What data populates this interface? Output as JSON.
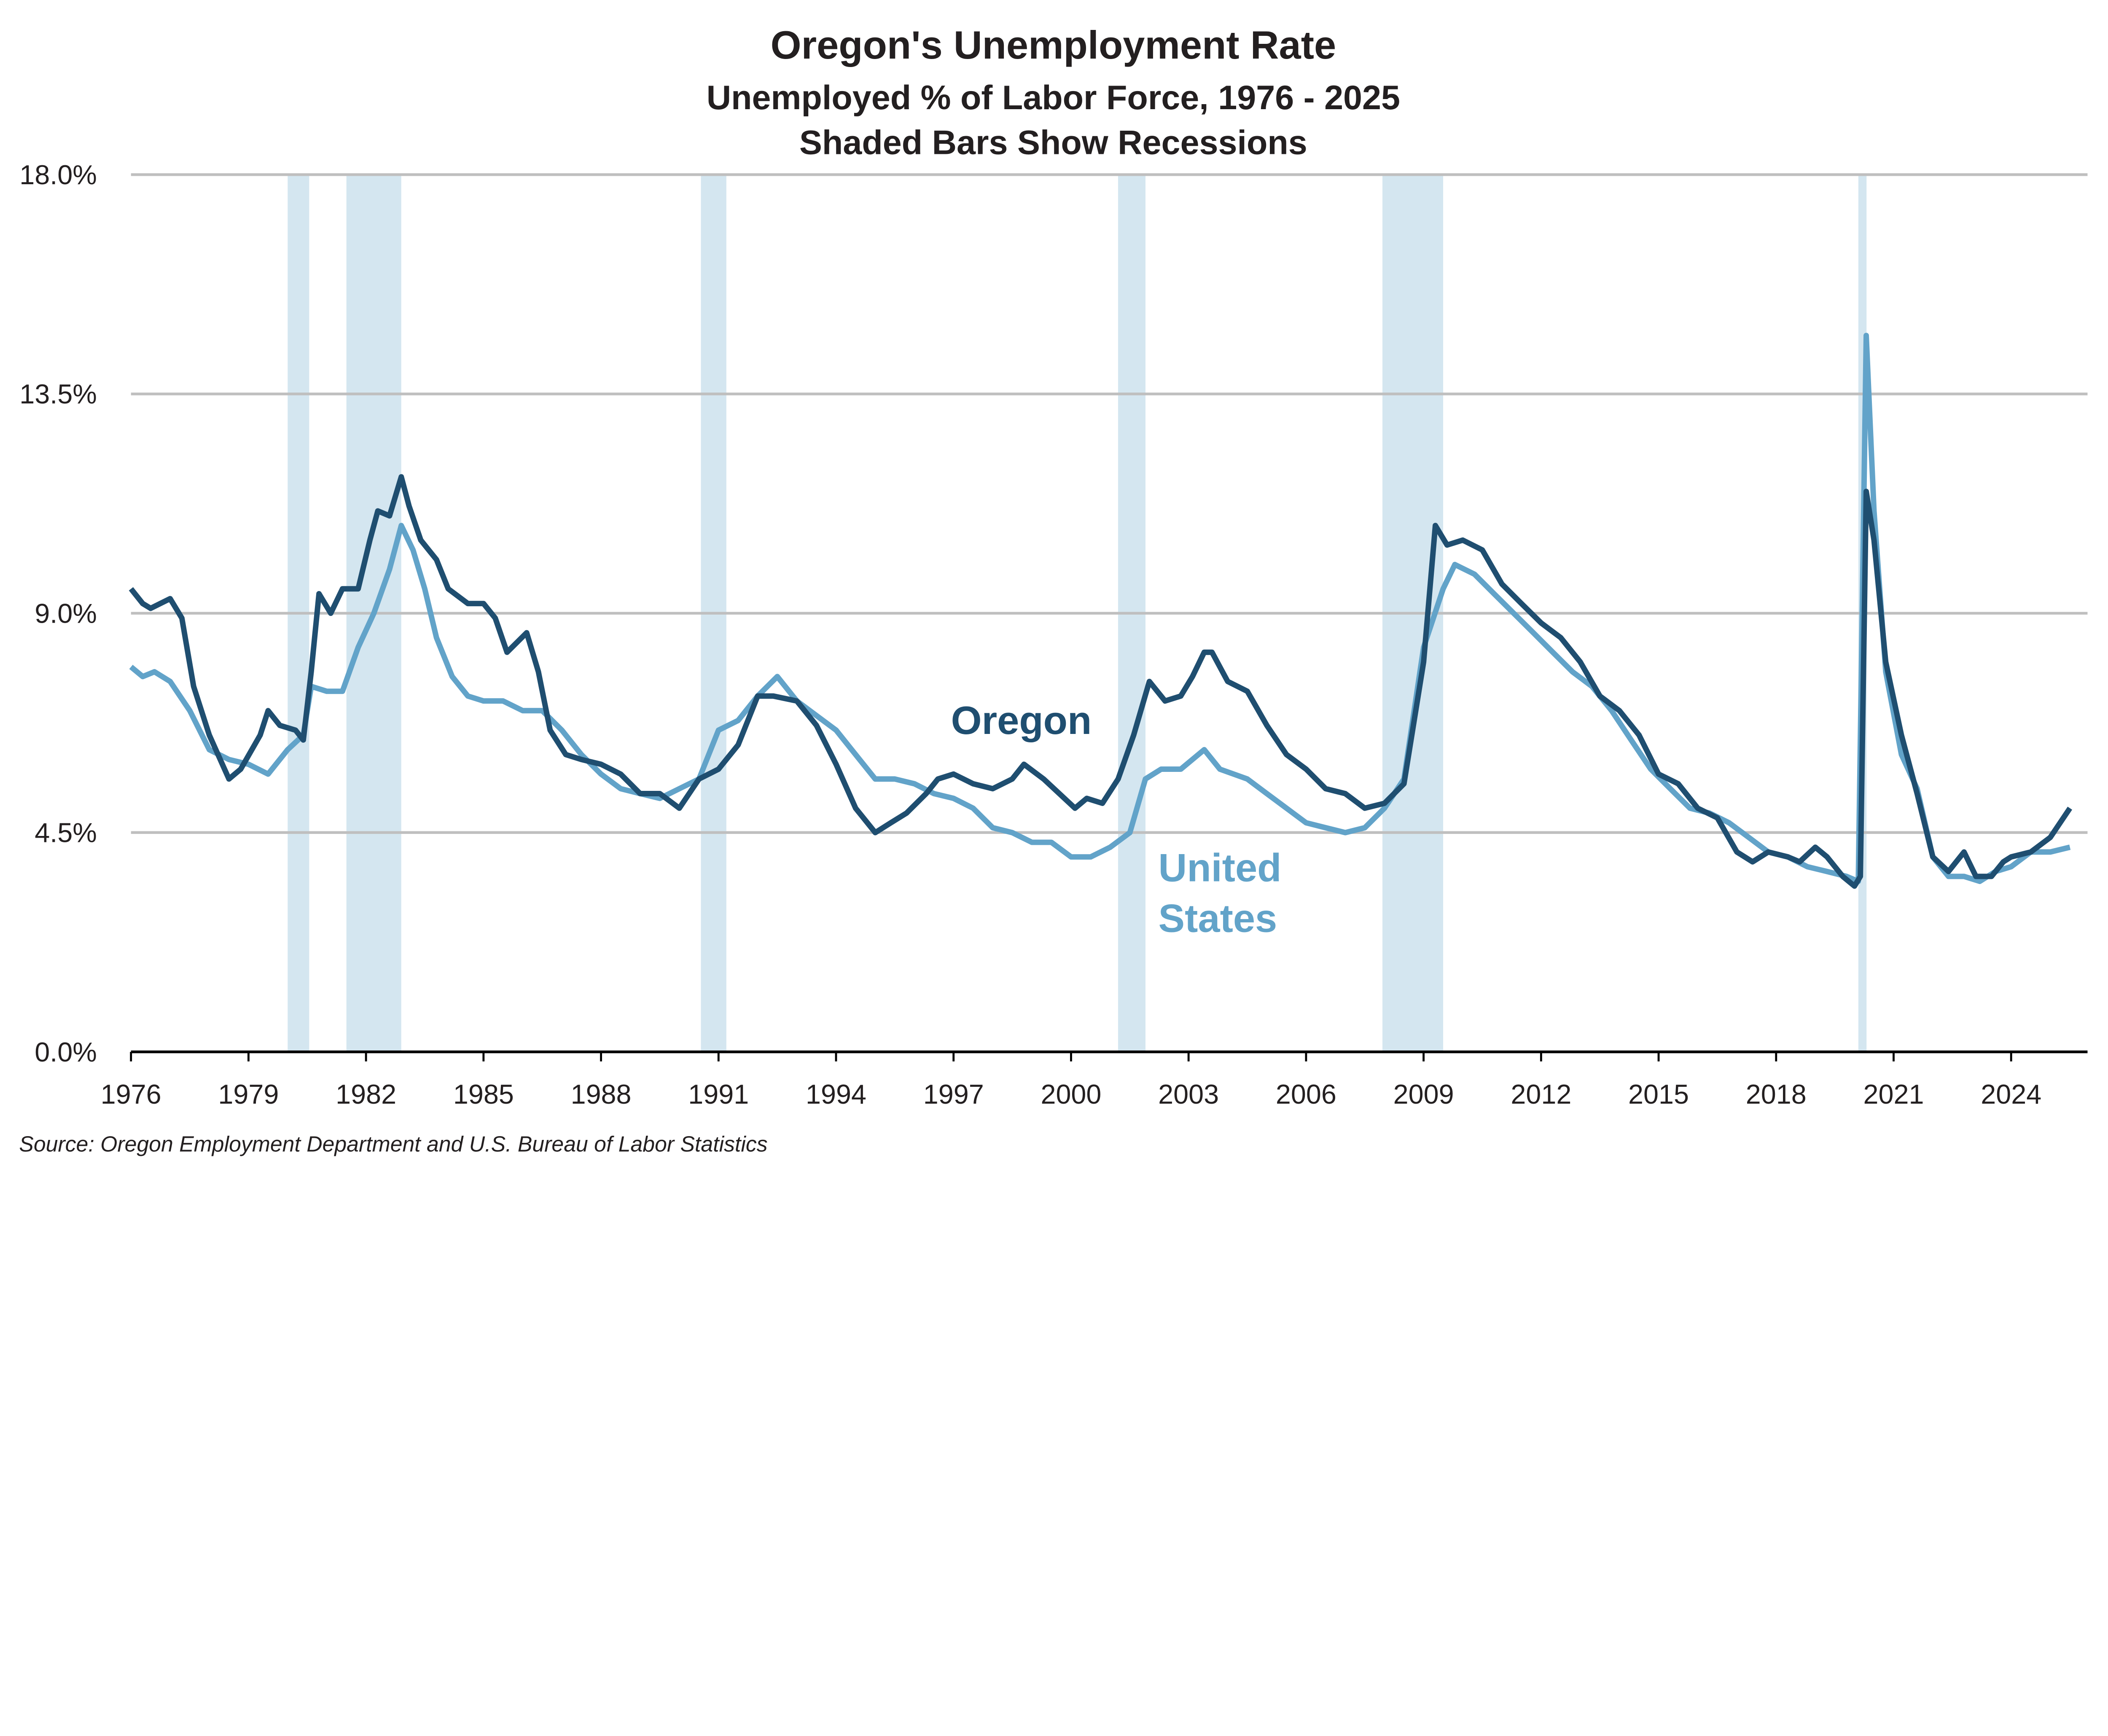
{
  "chart_data": {
    "type": "line",
    "title": "Oregon's Unemployment Rate",
    "subtitle": "Unemployed % of Labor Force, 1976 - 2025",
    "subtitle2": "Shaded Bars Show Recessions",
    "source": "Source: Oregon Employment Department and U.S. Bureau of Labor Statistics",
    "xlim": [
      1976,
      2025.6
    ],
    "ylim": [
      0,
      18
    ],
    "y_ticks": [
      0,
      4.5,
      9,
      13.5,
      18
    ],
    "y_tick_labels": [
      "0.0%",
      "4.5%",
      "9.0%",
      "13.5%",
      "18.0%"
    ],
    "x_ticks": [
      1976,
      1979,
      1982,
      1985,
      1988,
      1991,
      1994,
      1997,
      2000,
      2003,
      2006,
      2009,
      2012,
      2015,
      2018,
      2021,
      2024
    ],
    "x_tick_labels": [
      "1976",
      "1979",
      "1982",
      "1985",
      "1988",
      "1991",
      "1994",
      "1997",
      "2000",
      "2003",
      "2006",
      "2009",
      "2012",
      "2015",
      "2018",
      "2021",
      "2024"
    ],
    "grid": true,
    "recessions": [
      [
        1980.0,
        1980.55
      ],
      [
        1981.5,
        1982.9
      ],
      [
        1990.55,
        1991.2
      ],
      [
        2001.2,
        2001.9
      ],
      [
        2007.95,
        2009.5
      ],
      [
        2020.1,
        2020.3
      ]
    ],
    "colors": {
      "oregon": "#1f4e70",
      "us": "#62a3c9",
      "recession": "#d4e6f0",
      "grid": "#bfbfbf"
    },
    "series": [
      {
        "name": "Oregon",
        "label_lines": [
          "Oregon"
        ],
        "x": [
          1976.0,
          1976.3,
          1976.5,
          1977.0,
          1977.3,
          1977.6,
          1978.0,
          1978.5,
          1978.8,
          1979.3,
          1979.5,
          1979.8,
          1980.2,
          1980.4,
          1980.6,
          1980.8,
          1981.1,
          1981.4,
          1981.8,
          1982.1,
          1982.3,
          1982.6,
          1982.9,
          1983.1,
          1983.4,
          1983.8,
          1984.1,
          1984.6,
          1985.0,
          1985.3,
          1985.6,
          1986.1,
          1986.4,
          1986.7,
          1987.1,
          1987.5,
          1988.0,
          1988.5,
          1989.0,
          1989.5,
          1990.0,
          1990.5,
          1991.0,
          1991.5,
          1992.0,
          1992.4,
          1993.0,
          1993.5,
          1994.0,
          1994.5,
          1995.0,
          1995.4,
          1995.8,
          1996.3,
          1996.6,
          1997.0,
          1997.5,
          1998.0,
          1998.5,
          1998.8,
          1999.3,
          1999.7,
          2000.1,
          2000.4,
          2000.8,
          2001.2,
          2001.6,
          2002.0,
          2002.4,
          2002.8,
          2003.1,
          2003.4,
          2003.6,
          2004.0,
          2004.5,
          2005.0,
          2005.5,
          2006.0,
          2006.5,
          2007.0,
          2007.5,
          2008.0,
          2008.5,
          2009.0,
          2009.3,
          2009.6,
          2010.0,
          2010.5,
          2011.0,
          2011.5,
          2012.0,
          2012.5,
          2013.0,
          2013.5,
          2014.0,
          2014.5,
          2015.0,
          2015.5,
          2016.0,
          2016.5,
          2017.0,
          2017.4,
          2017.8,
          2018.3,
          2018.6,
          2019.0,
          2019.3,
          2019.7,
          2020.0,
          2020.15,
          2020.3,
          2020.5,
          2020.8,
          2021.2,
          2021.6,
          2022.0,
          2022.4,
          2022.8,
          2023.1,
          2023.5,
          2023.8,
          2024.0,
          2024.5,
          2025.0,
          2025.5
        ],
        "values": [
          9.5,
          9.2,
          9.1,
          9.3,
          8.9,
          7.5,
          6.5,
          5.6,
          5.8,
          6.5,
          7.0,
          6.7,
          6.6,
          6.4,
          7.8,
          9.4,
          9.0,
          9.5,
          9.5,
          10.5,
          11.1,
          11.0,
          11.8,
          11.2,
          10.5,
          10.1,
          9.5,
          9.2,
          9.2,
          8.9,
          8.2,
          8.6,
          7.8,
          6.6,
          6.1,
          6.0,
          5.9,
          5.7,
          5.3,
          5.3,
          5.0,
          5.6,
          5.8,
          6.3,
          7.3,
          7.3,
          7.2,
          6.7,
          5.9,
          5.0,
          4.5,
          4.7,
          4.9,
          5.3,
          5.6,
          5.7,
          5.5,
          5.4,
          5.6,
          5.9,
          5.6,
          5.3,
          5.0,
          5.2,
          5.1,
          5.6,
          6.5,
          7.6,
          7.2,
          7.3,
          7.7,
          8.2,
          8.2,
          7.6,
          7.4,
          6.7,
          6.1,
          5.8,
          5.4,
          5.3,
          5.0,
          5.1,
          5.5,
          8.0,
          10.8,
          10.4,
          10.5,
          10.3,
          9.6,
          9.2,
          8.8,
          8.5,
          8.0,
          7.3,
          7.0,
          6.5,
          5.7,
          5.5,
          5.0,
          4.8,
          4.1,
          3.9,
          4.1,
          4.0,
          3.9,
          4.2,
          4.0,
          3.6,
          3.4,
          3.6,
          11.5,
          10.5,
          8.0,
          6.5,
          5.3,
          4.0,
          3.7,
          4.1,
          3.6,
          3.6,
          3.9,
          4.0,
          4.1,
          4.4,
          5.0
        ]
      },
      {
        "name": "United States",
        "label_lines": [
          "United",
          "States"
        ],
        "x": [
          1976.0,
          1976.3,
          1976.6,
          1977.0,
          1977.5,
          1978.0,
          1978.5,
          1979.0,
          1979.5,
          1980.0,
          1980.4,
          1980.6,
          1981.0,
          1981.4,
          1981.8,
          1982.2,
          1982.6,
          1982.9,
          1983.2,
          1983.5,
          1983.8,
          1984.2,
          1984.6,
          1985.0,
          1985.5,
          1986.0,
          1986.5,
          1987.0,
          1987.5,
          1988.0,
          1988.5,
          1989.0,
          1989.5,
          1990.0,
          1990.5,
          1991.0,
          1991.5,
          1992.0,
          1992.5,
          1993.0,
          1993.5,
          1994.0,
          1994.5,
          1995.0,
          1995.5,
          1996.0,
          1996.5,
          1997.0,
          1997.5,
          1998.0,
          1998.5,
          1999.0,
          1999.5,
          2000.0,
          2000.5,
          2001.0,
          2001.5,
          2001.9,
          2002.3,
          2002.8,
          2003.4,
          2003.8,
          2004.5,
          2005.0,
          2005.5,
          2006.0,
          2006.5,
          2007.0,
          2007.5,
          2008.0,
          2008.5,
          2009.0,
          2009.5,
          2009.8,
          2010.3,
          2010.8,
          2011.3,
          2011.8,
          2012.3,
          2012.8,
          2013.3,
          2013.8,
          2014.3,
          2014.8,
          2015.3,
          2015.8,
          2016.3,
          2016.8,
          2017.3,
          2017.8,
          2018.3,
          2018.8,
          2019.3,
          2019.8,
          2020.1,
          2020.3,
          2020.5,
          2020.8,
          2021.2,
          2021.6,
          2022.0,
          2022.4,
          2022.8,
          2023.2,
          2023.6,
          2024.0,
          2024.5,
          2025.0,
          2025.5
        ],
        "values": [
          7.9,
          7.7,
          7.8,
          7.6,
          7.0,
          6.2,
          6.0,
          5.9,
          5.7,
          6.2,
          6.5,
          7.5,
          7.4,
          7.4,
          8.3,
          9.0,
          9.9,
          10.8,
          10.3,
          9.5,
          8.5,
          7.7,
          7.3,
          7.2,
          7.2,
          7.0,
          7.0,
          6.6,
          6.1,
          5.7,
          5.4,
          5.3,
          5.2,
          5.4,
          5.6,
          6.6,
          6.8,
          7.3,
          7.7,
          7.2,
          6.9,
          6.6,
          6.1,
          5.6,
          5.6,
          5.5,
          5.3,
          5.2,
          5.0,
          4.6,
          4.5,
          4.3,
          4.3,
          4.0,
          4.0,
          4.2,
          4.5,
          5.6,
          5.8,
          5.8,
          6.2,
          5.8,
          5.6,
          5.3,
          5.0,
          4.7,
          4.6,
          4.5,
          4.6,
          5.0,
          5.6,
          8.3,
          9.5,
          10.0,
          9.8,
          9.4,
          9.0,
          8.6,
          8.2,
          7.8,
          7.5,
          7.0,
          6.4,
          5.8,
          5.4,
          5.0,
          4.9,
          4.7,
          4.4,
          4.1,
          4.0,
          3.8,
          3.7,
          3.6,
          3.5,
          14.7,
          11.1,
          7.8,
          6.1,
          5.4,
          4.0,
          3.6,
          3.6,
          3.5,
          3.7,
          3.8,
          4.1,
          4.1,
          4.2
        ]
      }
    ]
  }
}
